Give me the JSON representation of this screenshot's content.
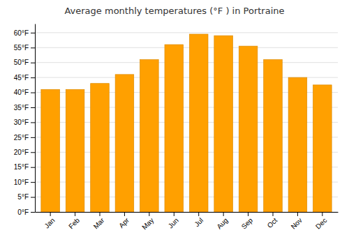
{
  "chart_data": {
    "type": "bar",
    "title": "Average monthly temperatures (°F ) in Portraine",
    "categories": [
      "Jan",
      "Feb",
      "Mar",
      "Apr",
      "May",
      "Jun",
      "Jul",
      "Aug",
      "Sep",
      "Oct",
      "Nov",
      "Dec"
    ],
    "values": [
      41,
      41,
      43,
      46,
      51,
      56,
      59.5,
      59,
      55.5,
      51,
      45,
      42.5
    ],
    "color": "#FFA000",
    "ylim": [
      0,
      63
    ],
    "yticks": [
      {
        "value": 0,
        "label": "0°F"
      },
      {
        "value": 5,
        "label": "5°F"
      },
      {
        "value": 10,
        "label": "10°F"
      },
      {
        "value": 15,
        "label": "15°F"
      },
      {
        "value": 20,
        "label": "20°F"
      },
      {
        "value": 25,
        "label": "25°F"
      },
      {
        "value": 30,
        "label": "30°F"
      },
      {
        "value": 35,
        "label": "35°F"
      },
      {
        "value": 40,
        "label": "40°F"
      },
      {
        "value": 45,
        "label": "45°F"
      },
      {
        "value": 50,
        "label": "50°F"
      },
      {
        "value": 55,
        "label": "55°F"
      },
      {
        "value": 60,
        "label": "60°F"
      }
    ],
    "grid": true
  }
}
